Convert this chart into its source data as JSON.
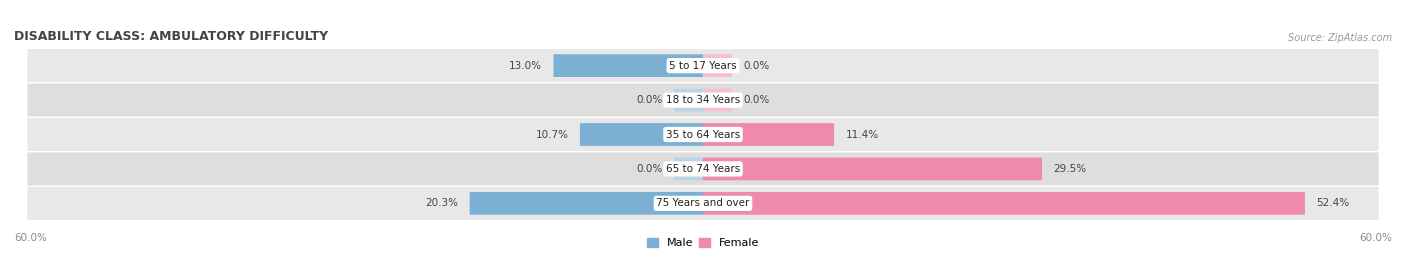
{
  "title": "DISABILITY CLASS: AMBULATORY DIFFICULTY",
  "source": "Source: ZipAtlas.com",
  "categories": [
    "5 to 17 Years",
    "18 to 34 Years",
    "35 to 64 Years",
    "65 to 74 Years",
    "75 Years and over"
  ],
  "male_values": [
    13.0,
    0.0,
    10.7,
    0.0,
    20.3
  ],
  "female_values": [
    0.0,
    0.0,
    11.4,
    29.5,
    52.4
  ],
  "max_val": 60.0,
  "male_color": "#7bafd4",
  "female_color": "#f08aaa",
  "male_light_color": "#b8d4e8",
  "female_light_color": "#f7c0d0",
  "row_bg_odd": "#e8e8e8",
  "row_bg_even": "#dedede",
  "title_color": "#444444",
  "value_color": "#444444",
  "bar_height": 0.62,
  "figsize": [
    14.06,
    2.69
  ],
  "dpi": 100
}
